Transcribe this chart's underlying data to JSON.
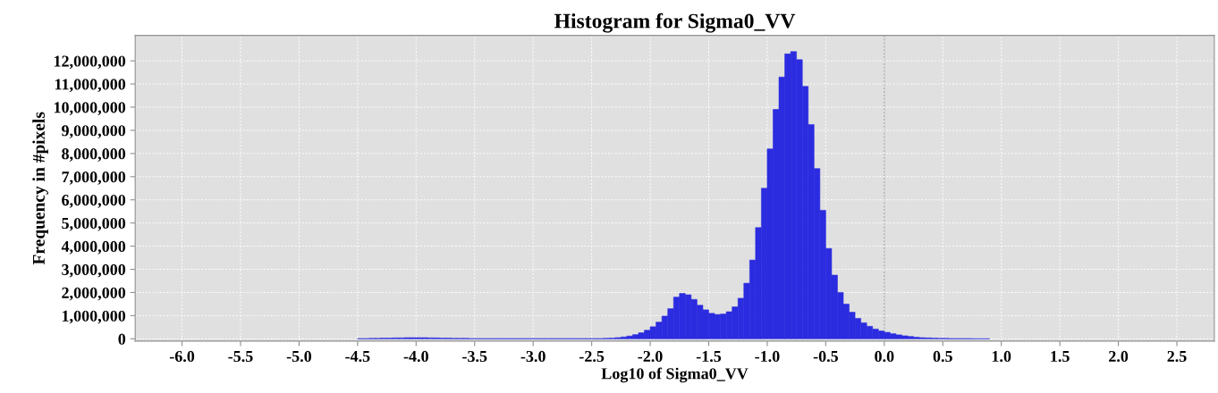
{
  "chart_data": {
    "type": "histogram",
    "title": "Histogram for Sigma0_VV",
    "xlabel": "Log10 of Sigma0_VV",
    "ylabel": "Frequency in #pixels",
    "bins": [
      -4.5,
      -4.45,
      -4.4,
      -4.35,
      -4.3,
      -4.25,
      -4.2,
      -4.15,
      -4.1,
      -4.05,
      -4.0,
      -3.95,
      -3.9,
      -3.85,
      -3.8,
      -3.75,
      -3.7,
      -3.65,
      -3.6,
      -3.55,
      -3.5,
      -3.45,
      -3.4,
      -3.35,
      -3.3,
      -3.25,
      -3.2,
      -3.15,
      -3.1,
      -3.05,
      -3.0,
      -2.95,
      -2.9,
      -2.85,
      -2.8,
      -2.75,
      -2.7,
      -2.65,
      -2.6,
      -2.55,
      -2.5,
      -2.45,
      -2.4,
      -2.35,
      -2.3,
      -2.25,
      -2.2,
      -2.15,
      -2.1,
      -2.05,
      -2.0,
      -1.95,
      -1.9,
      -1.85,
      -1.8,
      -1.75,
      -1.7,
      -1.65,
      -1.6,
      -1.55,
      -1.5,
      -1.45,
      -1.4,
      -1.35,
      -1.3,
      -1.25,
      -1.2,
      -1.15,
      -1.1,
      -1.05,
      -1.0,
      -0.95,
      -0.9,
      -0.85,
      -0.8,
      -0.75,
      -0.7,
      -0.65,
      -0.6,
      -0.55,
      -0.5,
      -0.45,
      -0.4,
      -0.35,
      -0.3,
      -0.25,
      -0.2,
      -0.15,
      -0.1,
      -0.05,
      0.0,
      0.05,
      0.1,
      0.15,
      0.2,
      0.25,
      0.3,
      0.35,
      0.4,
      0.45,
      0.5,
      0.55,
      0.6,
      0.65,
      0.7,
      0.75,
      0.8,
      0.85,
      0.9
    ],
    "values": [
      10000,
      10000,
      20000,
      20000,
      30000,
      30000,
      40000,
      40000,
      50000,
      50000,
      50000,
      50000,
      40000,
      40000,
      30000,
      30000,
      20000,
      20000,
      20000,
      10000,
      10000,
      10000,
      10000,
      10000,
      10000,
      10000,
      10000,
      10000,
      10000,
      10000,
      10000,
      10000,
      10000,
      10000,
      10000,
      10000,
      10000,
      10000,
      10000,
      10000,
      10000,
      10000,
      20000,
      30000,
      50000,
      80000,
      120000,
      180000,
      260000,
      370000,
      520000,
      720000,
      980000,
      1300000,
      1800000,
      1960000,
      1900000,
      1700000,
      1450000,
      1250000,
      1100000,
      1050000,
      1070000,
      1170000,
      1380000,
      1750000,
      2400000,
      3400000,
      4800000,
      6500000,
      8200000,
      9900000,
      11300000,
      12300000,
      12400000,
      12050000,
      10900000,
      9250000,
      7350000,
      5550000,
      3900000,
      2750000,
      2000000,
      1500000,
      1150000,
      880000,
      690000,
      540000,
      420000,
      340000,
      280000,
      220000,
      170000,
      130000,
      100000,
      70000,
      50000,
      40000,
      30000,
      20000,
      20000,
      10000,
      10000,
      10000,
      10000,
      0,
      0,
      0
    ],
    "color": "#2b2be0",
    "xlim": [
      -6.4,
      2.82
    ],
    "ylim": [
      -100000,
      13100000
    ],
    "xticks": [
      {
        "value": -6.0,
        "label": "-6.0"
      },
      {
        "value": -5.5,
        "label": "-5.5"
      },
      {
        "value": -5.0,
        "label": "-5.0"
      },
      {
        "value": -4.5,
        "label": "-4.5"
      },
      {
        "value": -4.0,
        "label": "-4.0"
      },
      {
        "value": -3.5,
        "label": "-3.5"
      },
      {
        "value": -3.0,
        "label": "-3.0"
      },
      {
        "value": -2.5,
        "label": "-2.5"
      },
      {
        "value": -2.0,
        "label": "-2.0"
      },
      {
        "value": -1.5,
        "label": "-1.5"
      },
      {
        "value": -1.0,
        "label": "-1.0"
      },
      {
        "value": -0.5,
        "label": "-0.5"
      },
      {
        "value": 0.0,
        "label": "0.0"
      },
      {
        "value": 0.5,
        "label": "0.5"
      },
      {
        "value": 1.0,
        "label": "1.0"
      },
      {
        "value": 1.5,
        "label": "1.5"
      },
      {
        "value": 2.0,
        "label": "2.0"
      },
      {
        "value": 2.5,
        "label": "2.5"
      }
    ],
    "yticks": [
      0,
      {
        "value": 1000000,
        "label": "1,000,000"
      },
      {
        "value": 2000000,
        "label": "2,000,000"
      },
      {
        "value": 3000000,
        "label": "3,000,000"
      },
      {
        "value": 4000000,
        "label": "4,000,000"
      },
      {
        "value": 5000000,
        "label": "5,000,000"
      },
      {
        "value": 6000000,
        "label": "6,000,000"
      },
      {
        "value": 7000000,
        "label": "7,000,000"
      },
      {
        "value": 8000000,
        "label": "8,000,000"
      },
      {
        "value": 9000000,
        "label": "9,000,000"
      },
      {
        "value": 10000000,
        "label": "10,000,000"
      },
      {
        "value": 11000000,
        "label": "11,000,000"
      },
      {
        "value": 12000000,
        "label": "12,000,000"
      }
    ],
    "ref_lines": [
      {
        "axis": "x",
        "value": 0.0,
        "color": "#a8a8a8"
      }
    ],
    "grid": true,
    "legend": false
  }
}
